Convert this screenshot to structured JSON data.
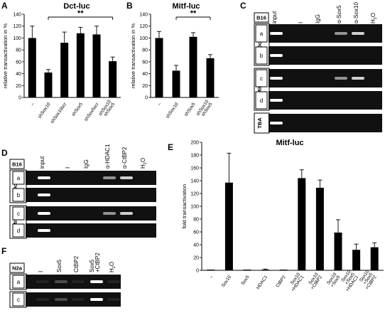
{
  "figure": {
    "labels": {
      "A": "A",
      "B": "B",
      "C": "C",
      "D": "D",
      "E": "E",
      "F": "F"
    }
  },
  "chart_data": [
    {
      "id": "A",
      "type": "bar",
      "title": "Dct-luc",
      "ylabel": "relative transactivation in %",
      "ylim": [
        0,
        140
      ],
      "yticks": [
        0,
        20,
        40,
        60,
        80,
        100,
        120,
        140
      ],
      "categories": [
        "–",
        "shSox10",
        "shSox10scr",
        "shSox5",
        "shSox5scr",
        "shSox10 shSox5"
      ],
      "values": [
        100,
        42,
        92,
        108,
        106,
        61
      ],
      "errors": [
        20,
        5,
        18,
        10,
        14,
        7
      ],
      "significance": {
        "from": 1,
        "to": 5,
        "label": "**"
      }
    },
    {
      "id": "B",
      "type": "bar",
      "title": "Mitf-luc",
      "ylabel": "relative transactivation in %",
      "ylim": [
        0,
        140
      ],
      "yticks": [
        0,
        20,
        40,
        60,
        80,
        100,
        120,
        140
      ],
      "categories": [
        "–",
        "shSox10",
        "shSox5",
        "shSox10 shSox5"
      ],
      "values": [
        100,
        45,
        102,
        66
      ],
      "errors": [
        11,
        9,
        7,
        6
      ],
      "significance": {
        "from": 1,
        "to": 3,
        "label": "**"
      }
    },
    {
      "id": "E",
      "type": "bar",
      "title": "Mitf-luc",
      "ylabel": "fold transactivation",
      "ylim": [
        0,
        200
      ],
      "yticks": [
        0,
        20,
        40,
        60,
        80,
        100,
        120,
        140,
        160,
        180,
        200
      ],
      "categories": [
        "–",
        "Sox10",
        "Sox5",
        "HDAC1",
        "CtBP2",
        "Sox10 +HDAC1",
        "Sox10 +CtBP2",
        "Sox10 +Sox5",
        "Sox10 +Sox5 +HDAC1",
        "Sox10 +Sox5 +CtBP2"
      ],
      "values": [
        1,
        137,
        1,
        1,
        1,
        144,
        129,
        59,
        32,
        36
      ],
      "errors": [
        0,
        46,
        0,
        1,
        0,
        13,
        12,
        20,
        9,
        7
      ]
    }
  ],
  "gels": {
    "C": {
      "cell": "B16",
      "columns": [
        "input",
        "I",
        "IgG",
        "α-Sox5",
        "α-Sox10",
        "H2O"
      ],
      "groups": [
        {
          "name": "Dct",
          "rows": [
            "a",
            "b"
          ]
        },
        {
          "name": "Mitf",
          "rows": [
            "c",
            "d"
          ]
        },
        {
          "name": "TBA",
          "rows": [
            ""
          ]
        }
      ]
    },
    "D": {
      "cell": "B16",
      "columns": [
        "input",
        "I",
        "IgG",
        "α-HDAC1",
        "α-CtBP2",
        "H2O"
      ],
      "groups": [
        {
          "name": "Dct",
          "rows": [
            "a",
            "b"
          ]
        },
        {
          "name": "Mitf",
          "rows": [
            "c",
            "d"
          ]
        }
      ]
    },
    "F": {
      "cell": "N2a",
      "columns": [
        "I",
        "Sox5",
        "CtBP2",
        "Sox5 +CtBP2",
        "H2O"
      ],
      "groups": [
        {
          "name": "Dct",
          "rows": [
            "a"
          ]
        },
        {
          "name": "Mitf",
          "rows": [
            "c"
          ]
        }
      ]
    }
  }
}
